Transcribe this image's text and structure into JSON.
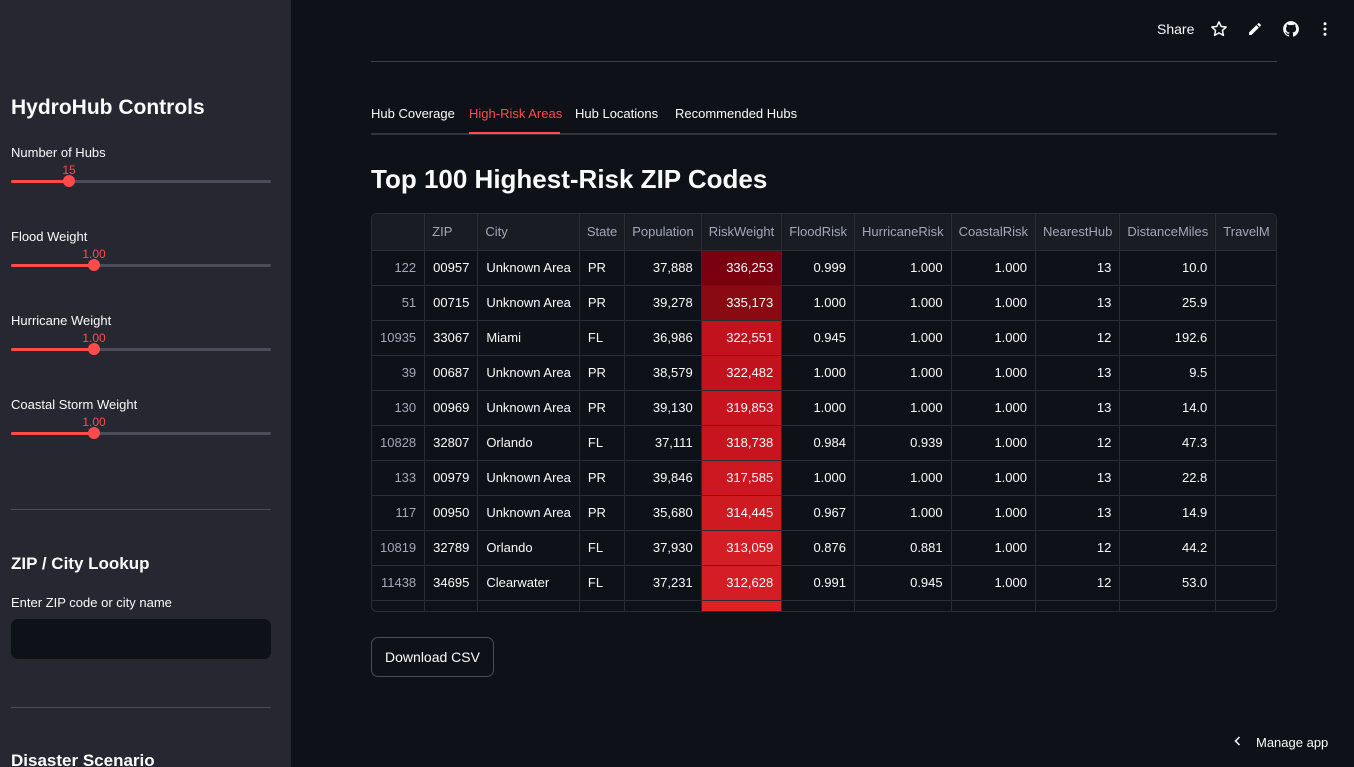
{
  "sidebar": {
    "title": "HydroHub Controls",
    "sliders": [
      {
        "label": "Number of Hubs",
        "value": "15",
        "fraction": 0.22
      },
      {
        "label": "Flood Weight",
        "value": "1.00",
        "fraction": 0.32
      },
      {
        "label": "Hurricane Weight",
        "value": "1.00",
        "fraction": 0.32
      },
      {
        "label": "Coastal Storm Weight",
        "value": "1.00",
        "fraction": 0.32
      }
    ],
    "lookup_heading": "ZIP / City Lookup",
    "lookup_label": "Enter ZIP code or city name",
    "lookup_value": "",
    "scenario_heading": "Disaster Scenario"
  },
  "header": {
    "share_label": "Share",
    "icons": [
      "star-icon",
      "pencil-icon",
      "github-icon",
      "more-vertical-icon"
    ]
  },
  "tabs": [
    {
      "label": "Hub Coverage",
      "active": false
    },
    {
      "label": "High-Risk Areas",
      "active": true
    },
    {
      "label": "Hub Locations",
      "active": false
    },
    {
      "label": "Recommended Hubs",
      "active": false
    }
  ],
  "page_title": "Top 100 Highest-Risk ZIP Codes",
  "table": {
    "columns": [
      "",
      "ZIP",
      "City",
      "State",
      "Population",
      "RiskWeight",
      "FloodRisk",
      "HurricaneRisk",
      "CoastalRisk",
      "NearestHub",
      "DistanceMiles",
      "TravelM"
    ],
    "rows": [
      [
        "122",
        "00957",
        "Unknown Area",
        "PR",
        "37,888",
        "336,253",
        "0.999",
        "1.000",
        "1.000",
        "13",
        "10.0",
        ""
      ],
      [
        "51",
        "00715",
        "Unknown Area",
        "PR",
        "39,278",
        "335,173",
        "1.000",
        "1.000",
        "1.000",
        "13",
        "25.9",
        ""
      ],
      [
        "10935",
        "33067",
        "Miami",
        "FL",
        "36,986",
        "322,551",
        "0.945",
        "1.000",
        "1.000",
        "12",
        "192.6",
        ""
      ],
      [
        "39",
        "00687",
        "Unknown Area",
        "PR",
        "38,579",
        "322,482",
        "1.000",
        "1.000",
        "1.000",
        "13",
        "9.5",
        ""
      ],
      [
        "130",
        "00969",
        "Unknown Area",
        "PR",
        "39,130",
        "319,853",
        "1.000",
        "1.000",
        "1.000",
        "13",
        "14.0",
        ""
      ],
      [
        "10828",
        "32807",
        "Orlando",
        "FL",
        "37,111",
        "318,738",
        "0.984",
        "0.939",
        "1.000",
        "12",
        "47.3",
        ""
      ],
      [
        "133",
        "00979",
        "Unknown Area",
        "PR",
        "39,846",
        "317,585",
        "1.000",
        "1.000",
        "1.000",
        "13",
        "22.8",
        ""
      ],
      [
        "117",
        "00950",
        "Unknown Area",
        "PR",
        "35,680",
        "314,445",
        "0.967",
        "1.000",
        "1.000",
        "13",
        "14.9",
        ""
      ],
      [
        "10819",
        "32789",
        "Orlando",
        "FL",
        "37,930",
        "313,059",
        "0.876",
        "0.881",
        "1.000",
        "12",
        "44.2",
        ""
      ],
      [
        "11438",
        "34695",
        "Clearwater",
        "FL",
        "37,231",
        "312,628",
        "0.991",
        "0.945",
        "1.000",
        "12",
        "53.0",
        ""
      ],
      [
        "",
        "",
        "",
        "",
        "",
        "",
        "",
        "",
        "",
        "",
        "",
        ""
      ]
    ],
    "heat_colors": [
      "#7a0010",
      "#8a0a14",
      "#c1121d",
      "#c1121d",
      "#c8141f",
      "#c8141f",
      "#cc1620",
      "#d01a22",
      "#d41d24",
      "#d41d24",
      "#dc2226"
    ]
  },
  "download_label": "Download CSV",
  "manage_app_label": "Manage app",
  "colors": {
    "accent": "#ff4b4b",
    "background": "#0e1117",
    "sidebar": "#262730"
  }
}
